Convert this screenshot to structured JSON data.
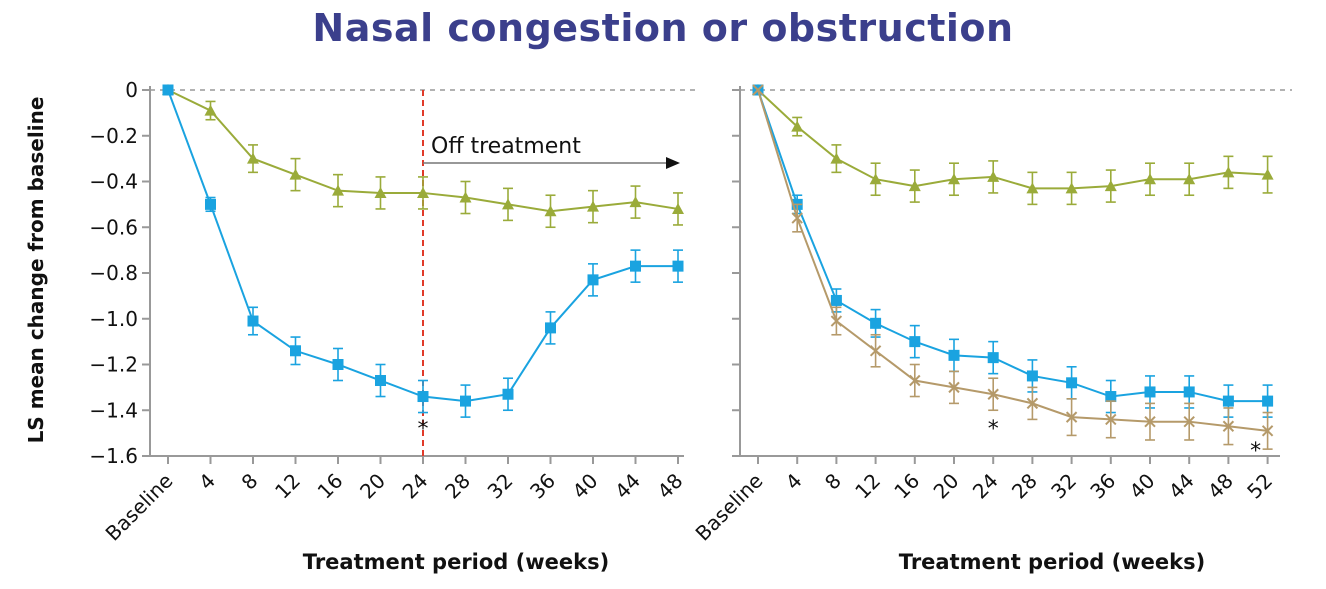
{
  "chart_data": [
    {
      "type": "line",
      "title": "Nasal congestion or obstruction",
      "ylabel": "LS mean change from baseline",
      "xlabel": "Treatment period (weeks)",
      "ylim": [
        -1.6,
        0
      ],
      "yticks": [
        "0",
        "−0.2",
        "−0.4",
        "−0.6",
        "−0.8",
        "−1.0",
        "−1.2",
        "−1.4",
        "−1.6"
      ],
      "categories": [
        "Baseline",
        "4",
        "8",
        "12",
        "16",
        "20",
        "24",
        "28",
        "32",
        "36",
        "40",
        "44",
        "48"
      ],
      "grid": false,
      "annotation": "Off treatment",
      "significance_marks": [
        {
          "x": "24",
          "symbol": "*"
        }
      ],
      "series": [
        {
          "marker": "triangle",
          "color": "#9aab3a",
          "values": [
            0,
            -0.09,
            -0.3,
            -0.37,
            -0.44,
            -0.45,
            -0.45,
            -0.47,
            -0.5,
            -0.53,
            -0.51,
            -0.49,
            -0.52
          ],
          "error": [
            0,
            0.04,
            0.06,
            0.07,
            0.07,
            0.07,
            0.07,
            0.07,
            0.07,
            0.07,
            0.07,
            0.07,
            0.07
          ]
        },
        {
          "marker": "square",
          "color": "#1aa3e0",
          "values": [
            0,
            -0.5,
            -1.01,
            -1.14,
            -1.2,
            -1.27,
            -1.34,
            -1.36,
            -1.33,
            -1.04,
            -0.83,
            -0.77,
            -0.77
          ],
          "error": [
            0,
            0.03,
            0.06,
            0.06,
            0.07,
            0.07,
            0.07,
            0.07,
            0.07,
            0.07,
            0.07,
            0.07,
            0.07
          ]
        }
      ]
    },
    {
      "type": "line",
      "xlabel": "Treatment period (weeks)",
      "ylim": [
        -1.6,
        0
      ],
      "categories": [
        "Baseline",
        "4",
        "8",
        "12",
        "16",
        "20",
        "24",
        "28",
        "32",
        "36",
        "40",
        "44",
        "48",
        "52"
      ],
      "grid": false,
      "significance_marks": [
        {
          "x": "24",
          "symbol": "*"
        },
        {
          "x": "52",
          "symbol": "*"
        }
      ],
      "series": [
        {
          "marker": "triangle",
          "color": "#9aab3a",
          "values": [
            0,
            -0.16,
            -0.3,
            -0.39,
            -0.42,
            -0.39,
            -0.38,
            -0.43,
            -0.43,
            -0.42,
            -0.39,
            -0.39,
            -0.36,
            -0.37
          ],
          "error": [
            0,
            0.04,
            0.06,
            0.07,
            0.07,
            0.07,
            0.07,
            0.07,
            0.07,
            0.07,
            0.07,
            0.07,
            0.07,
            0.08
          ]
        },
        {
          "marker": "square",
          "color": "#1aa3e0",
          "values": [
            0,
            -0.5,
            -0.92,
            -1.02,
            -1.1,
            -1.16,
            -1.17,
            -1.25,
            -1.28,
            -1.34,
            -1.32,
            -1.32,
            -1.36,
            -1.36
          ],
          "error": [
            0,
            0.04,
            0.05,
            0.06,
            0.07,
            0.07,
            0.07,
            0.07,
            0.07,
            0.07,
            0.07,
            0.07,
            0.07,
            0.07
          ]
        },
        {
          "marker": "cross",
          "color": "#b59a6a",
          "values": [
            0,
            -0.56,
            -1.01,
            -1.14,
            -1.27,
            -1.3,
            -1.33,
            -1.37,
            -1.43,
            -1.44,
            -1.45,
            -1.45,
            -1.47,
            -1.49
          ],
          "error": [
            0,
            0.06,
            0.06,
            0.07,
            0.07,
            0.07,
            0.07,
            0.07,
            0.08,
            0.08,
            0.08,
            0.08,
            0.08,
            0.08
          ]
        }
      ]
    }
  ]
}
